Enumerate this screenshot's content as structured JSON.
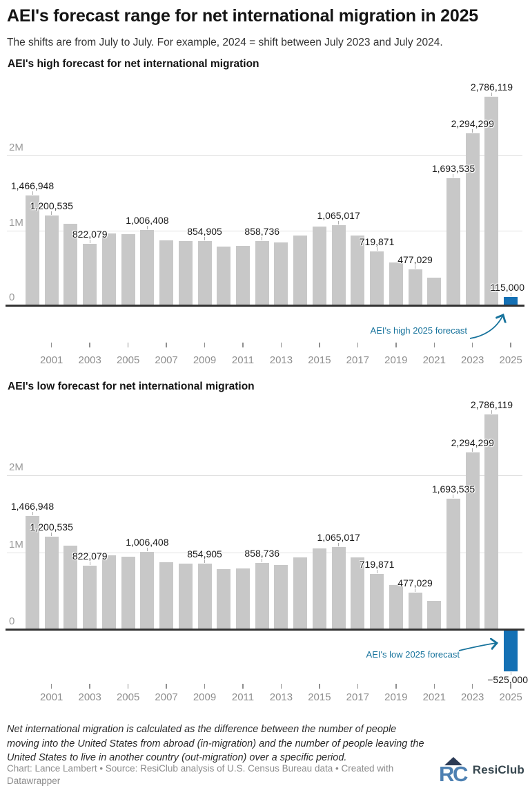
{
  "header": {
    "title": "AEI's forecast range for net international migration in 2025",
    "subtitle": "The shifts are from July to July. For example, 2024 = shift between July 2023 and July 2024."
  },
  "colors": {
    "bar": "#c8c8c8",
    "highlight": "#1470b4",
    "annotation": "#17739c",
    "baseline": "#333333",
    "gridline": "#e1e1e1"
  },
  "chart_data": [
    {
      "id": "high",
      "type": "bar",
      "title": "AEI's high forecast for net international migration",
      "x": [
        2000,
        2001,
        2002,
        2003,
        2004,
        2005,
        2006,
        2007,
        2008,
        2009,
        2010,
        2011,
        2012,
        2013,
        2014,
        2015,
        2016,
        2017,
        2018,
        2019,
        2020,
        2021,
        2022,
        2023,
        2024,
        2025
      ],
      "values": [
        1466948,
        1200535,
        1085000,
        822079,
        960000,
        945000,
        1006408,
        870000,
        855000,
        854905,
        780000,
        790000,
        858736,
        835000,
        935000,
        1050000,
        1065017,
        930000,
        719871,
        570000,
        477029,
        370000,
        1693535,
        2294299,
        2786119,
        115000
      ],
      "point_labels": {
        "2000": "1,466,948",
        "2001": "1,200,535",
        "2003": "822,079",
        "2006": "1,006,408",
        "2009": "854,905",
        "2012": "858,736",
        "2016": "1,065,017",
        "2018": "719,871",
        "2020": "477,029",
        "2022": "1,693,535",
        "2023": "2,294,299",
        "2024": "2,786,119",
        "2025": "115,000"
      },
      "highlight_year": 2025,
      "annotation": "AEI's high 2025 forecast",
      "yticks": [
        {
          "v": 0,
          "label": "0"
        },
        {
          "v": 1000000,
          "label": "1M"
        },
        {
          "v": 2000000,
          "label": "2M"
        }
      ],
      "xticks": [
        2001,
        2003,
        2005,
        2007,
        2009,
        2011,
        2013,
        2015,
        2017,
        2019,
        2021,
        2023,
        2025
      ],
      "ylim": [
        0,
        2900000
      ],
      "grid": "horizontal",
      "legend": "none"
    },
    {
      "id": "low",
      "type": "bar",
      "title": "AEI's low forecast for net international migration",
      "x": [
        2000,
        2001,
        2002,
        2003,
        2004,
        2005,
        2006,
        2007,
        2008,
        2009,
        2010,
        2011,
        2012,
        2013,
        2014,
        2015,
        2016,
        2017,
        2018,
        2019,
        2020,
        2021,
        2022,
        2023,
        2024,
        2025
      ],
      "values": [
        1466948,
        1200535,
        1085000,
        822079,
        960000,
        945000,
        1006408,
        870000,
        855000,
        854905,
        780000,
        790000,
        858736,
        835000,
        935000,
        1050000,
        1065017,
        930000,
        719871,
        570000,
        477029,
        370000,
        1693535,
        2294299,
        2786119,
        -525000
      ],
      "point_labels": {
        "2000": "1,466,948",
        "2001": "1,200,535",
        "2003": "822,079",
        "2006": "1,006,408",
        "2009": "854,905",
        "2012": "858,736",
        "2016": "1,065,017",
        "2018": "719,871",
        "2020": "477,029",
        "2022": "1,693,535",
        "2023": "2,294,299",
        "2024": "2,786,119",
        "2025": "−525,000"
      },
      "highlight_year": 2025,
      "annotation": "AEI's low 2025 forecast",
      "yticks": [
        {
          "v": 0,
          "label": "0"
        },
        {
          "v": 1000000,
          "label": "1M"
        },
        {
          "v": 2000000,
          "label": "2M"
        }
      ],
      "xticks": [
        2001,
        2003,
        2005,
        2007,
        2009,
        2011,
        2013,
        2015,
        2017,
        2019,
        2021,
        2023,
        2025
      ],
      "ylim": [
        -600000,
        2900000
      ],
      "grid": "horizontal",
      "legend": "none"
    }
  ],
  "footer": {
    "note_lines": [
      "Net international migration is calculated as the difference between the number of people",
      "moving into the United States from abroad (in-migration) and the number of people leaving the",
      "United States to live in another country (out-migration) over a specific period."
    ],
    "credit_lines": [
      "Chart: Lance Lambert • Source: ResiClub analysis of U.S. Census Bureau data • Created with",
      "Datawrapper"
    ],
    "logo_text": "ResiClub"
  }
}
